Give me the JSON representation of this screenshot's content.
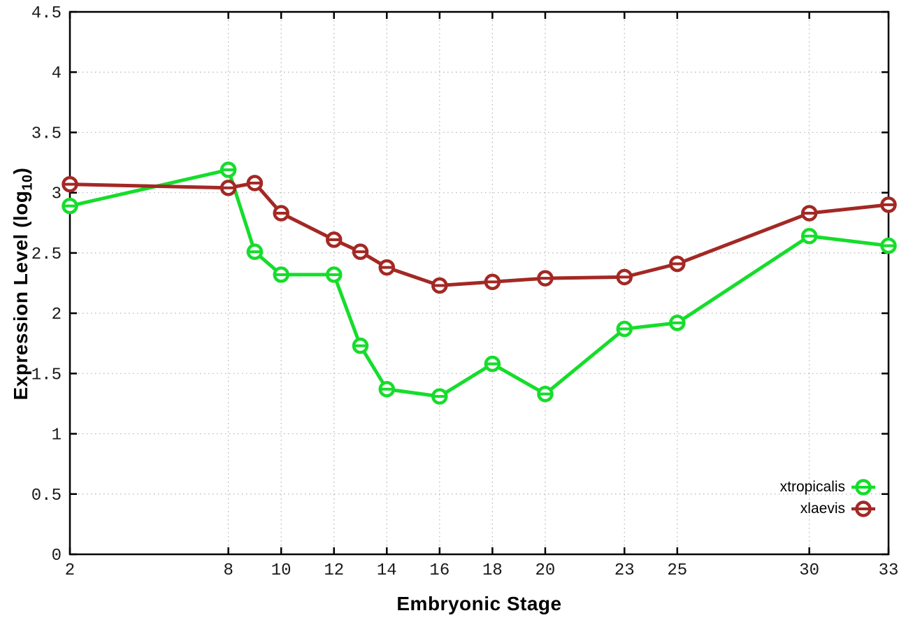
{
  "chart_data": {
    "type": "line",
    "title": "",
    "xlabel": "Embryonic Stage",
    "ylabel": "Expression Level (log10)",
    "ylabel_parts": {
      "main": "Expression Level (log",
      "sub": "10",
      "close": ")"
    },
    "xlim": [
      2,
      33
    ],
    "ylim": [
      0,
      4.5
    ],
    "x_ticks": [
      2,
      8,
      10,
      12,
      14,
      16,
      18,
      20,
      23,
      25,
      30,
      33
    ],
    "x_tick_labels": [
      "2",
      "8",
      "10",
      "12",
      "14",
      "16",
      "18",
      "20",
      "23",
      "25",
      "30",
      "33"
    ],
    "y_ticks": [
      0,
      0.5,
      1,
      1.5,
      2,
      2.5,
      3,
      3.5,
      4,
      4.5
    ],
    "y_tick_labels": [
      "0",
      "0.5",
      "1",
      "1.5",
      "2",
      "2.5",
      "3",
      "3.5",
      "4",
      "4.5"
    ],
    "grid": true,
    "legend_position": "bottom-right",
    "background_color": "#ffffff",
    "grid_color": "#b3b3b3",
    "axis_color": "#000000",
    "marker": "open-circle-with-errorbar-dash",
    "x": [
      2,
      8,
      9,
      10,
      12,
      13,
      14,
      16,
      18,
      20,
      23,
      25,
      30,
      33
    ],
    "series": [
      {
        "name": "xtropicalis",
        "color": "#15dd2b",
        "values": [
          2.89,
          3.19,
          2.51,
          2.32,
          2.32,
          1.73,
          1.37,
          1.31,
          1.58,
          1.33,
          1.87,
          1.92,
          2.64,
          2.56
        ]
      },
      {
        "name": "xlaevis",
        "color": "#a32824",
        "values": [
          3.07,
          3.04,
          3.08,
          2.83,
          2.61,
          2.51,
          2.38,
          2.23,
          2.26,
          2.29,
          2.3,
          2.41,
          2.83,
          2.9
        ]
      }
    ]
  }
}
